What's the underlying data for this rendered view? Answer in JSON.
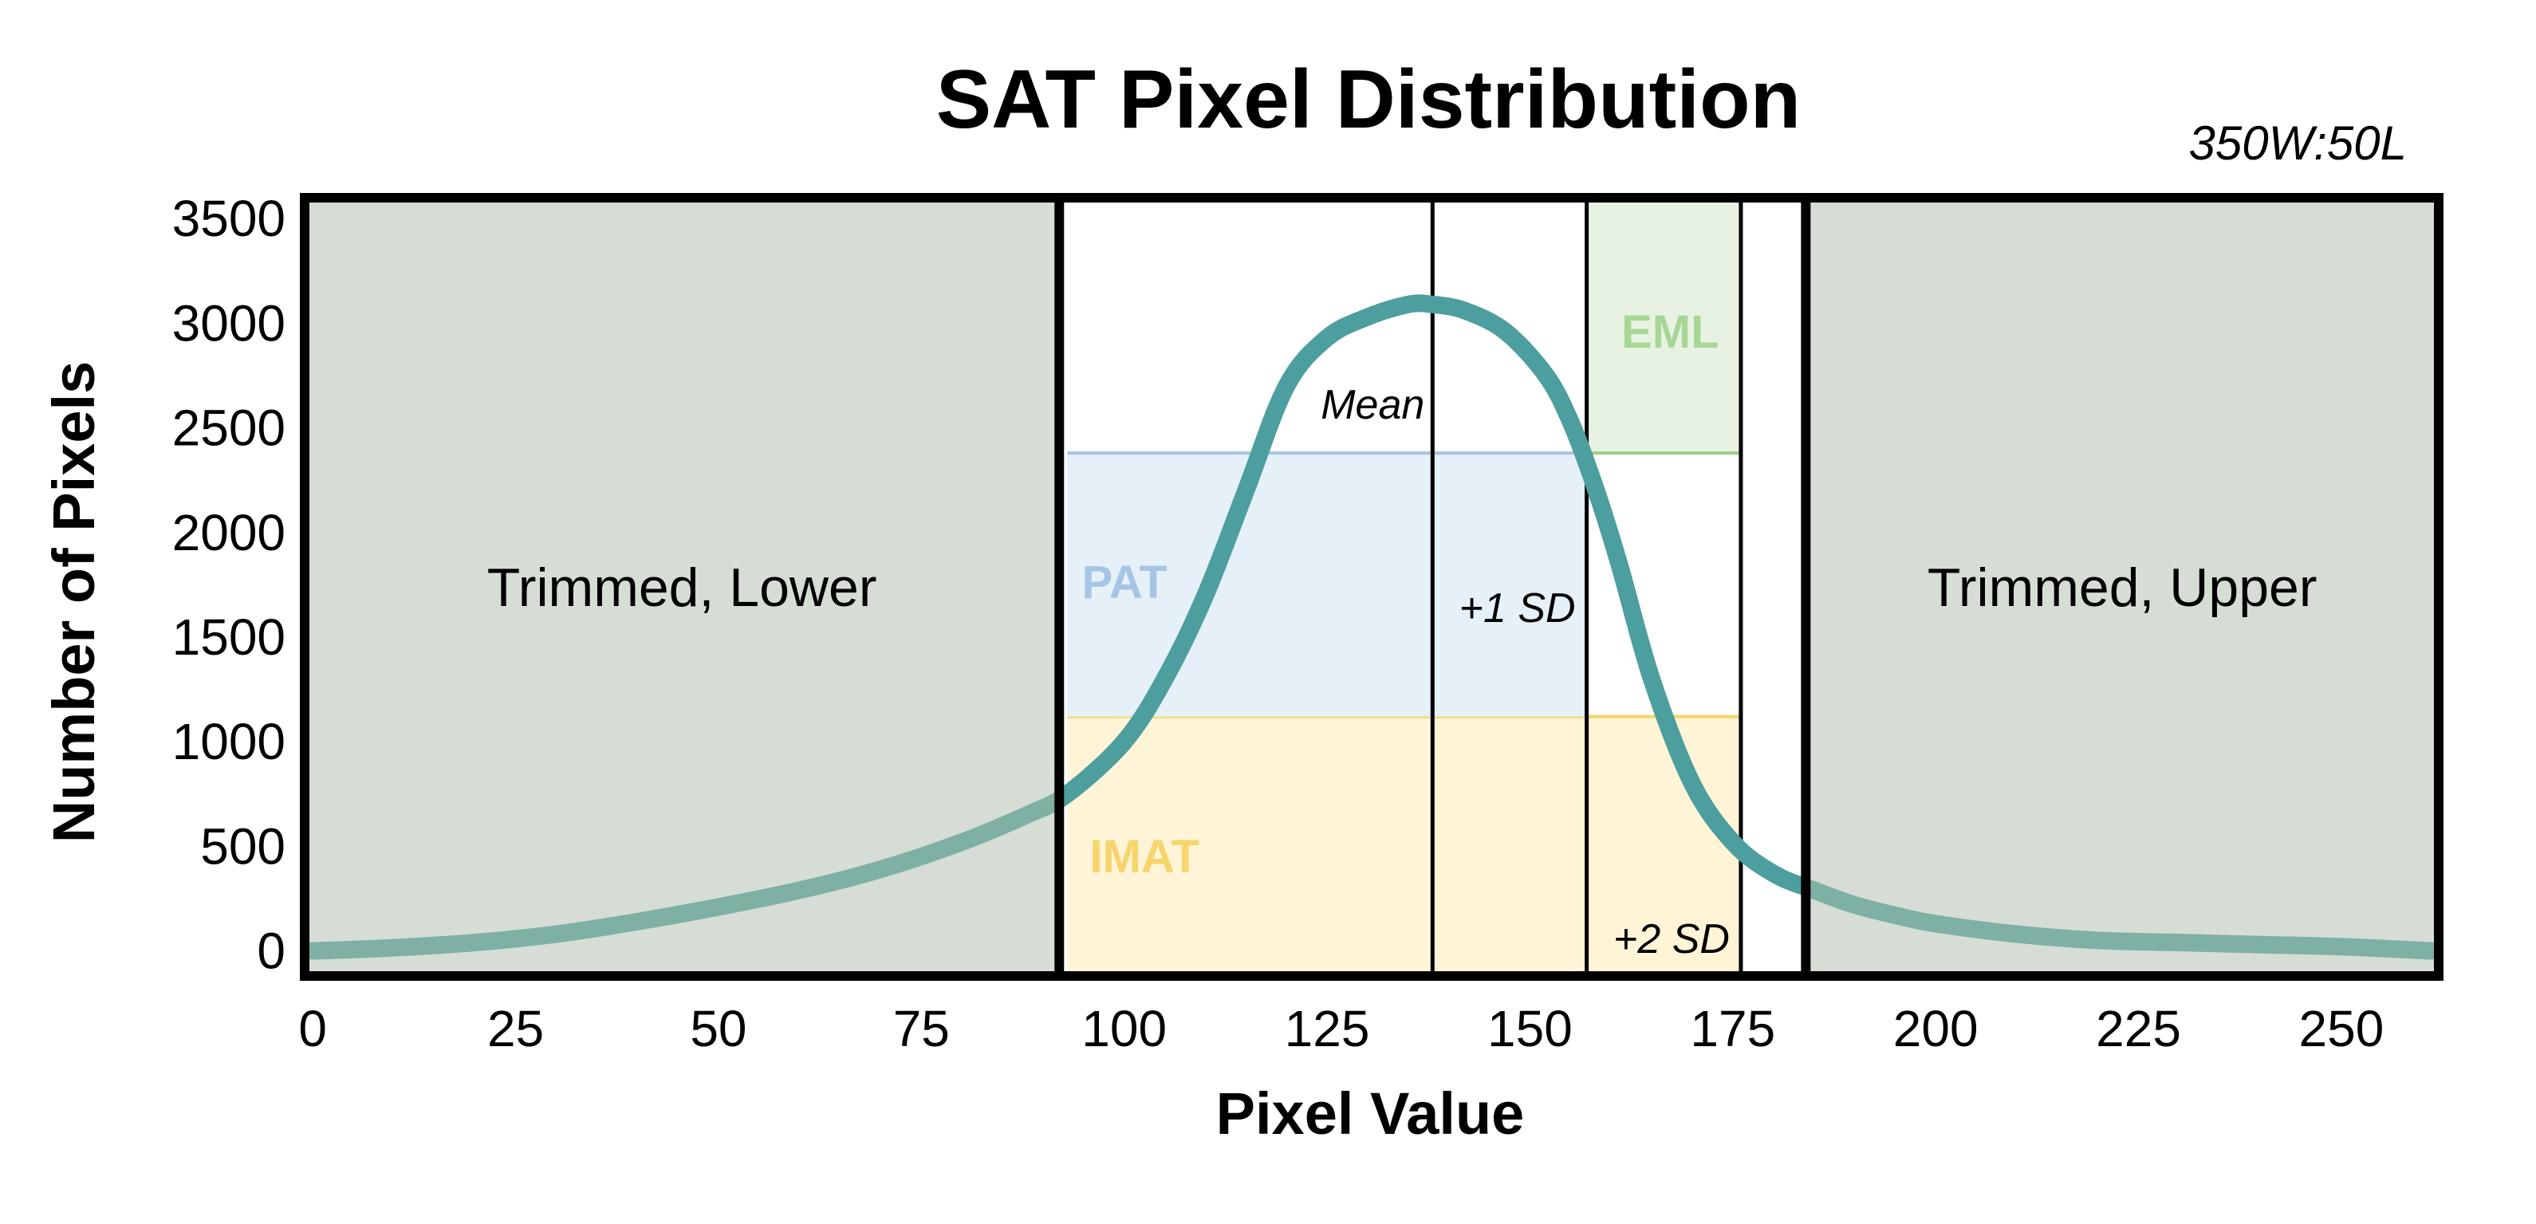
{
  "chart_data": {
    "type": "area",
    "title": "SAT Pixel Distribution",
    "subtitle": "350W:50L",
    "xlabel": "Pixel Value",
    "ylabel": "Number of Pixels",
    "xlim": [
      -1,
      262
    ],
    "ylim": [
      -120,
      3600
    ],
    "x_ticks": [
      0,
      25,
      50,
      75,
      100,
      125,
      150,
      175,
      200,
      225,
      250
    ],
    "y_ticks": [
      0,
      500,
      1000,
      1500,
      2000,
      2500,
      3000,
      3500
    ],
    "grid": false,
    "legend": "none",
    "series": [
      {
        "x": [
          0,
          10,
          20,
          30,
          40,
          50,
          60,
          70,
          80,
          88,
          93,
          100,
          105,
          110,
          115,
          120,
          125,
          130,
          135,
          138,
          142,
          147,
          152,
          155,
          158,
          161,
          165,
          170,
          175,
          180,
          185,
          190,
          195,
          200,
          210,
          220,
          230,
          240,
          250,
          261
        ],
        "y": [
          0,
          15,
          40,
          80,
          140,
          210,
          290,
          390,
          520,
          650,
          750,
          1000,
          1300,
          1700,
          2200,
          2700,
          2930,
          3030,
          3090,
          3090,
          3060,
          2960,
          2750,
          2530,
          2220,
          1850,
          1300,
          800,
          520,
          370,
          290,
          220,
          170,
          130,
          80,
          50,
          40,
          30,
          20,
          0
        ],
        "color": "#4d9e9f"
      }
    ],
    "regions": [
      {
        "label": "Trimmed, Lower",
        "x0": -1,
        "x1": 92,
        "color": "#d6ddd5"
      },
      {
        "label": "Trimmed, Upper",
        "x0": 184,
        "x1": 262,
        "color": "#d6ddd5"
      }
    ],
    "bands": [
      {
        "label": "IMAT",
        "x0": 93,
        "x1": 176,
        "y0": -120,
        "y1": 1120,
        "fill": "#fff5d6",
        "line": "#f5d46a",
        "text_color": "#f7d46c"
      },
      {
        "label": "PAT",
        "x0": 93,
        "x1": 157,
        "y0": 1120,
        "y1": 2380,
        "fill": "#e6f0f8",
        "line": "#a6c4e2",
        "text_color": "#a6c5e5"
      },
      {
        "label": "EML",
        "x0": 157,
        "x1": 176,
        "y0": 2380,
        "y1": 3600,
        "fill": "#e8f2e2",
        "line": "#9ccf8b",
        "text_color": "#a8d696"
      }
    ],
    "markers": [
      {
        "label": "Mean",
        "x": 138
      },
      {
        "label": "+1 SD",
        "x": 157
      },
      {
        "label": "+2 SD",
        "x": 176
      }
    ],
    "boundaries": [
      92,
      184
    ]
  }
}
